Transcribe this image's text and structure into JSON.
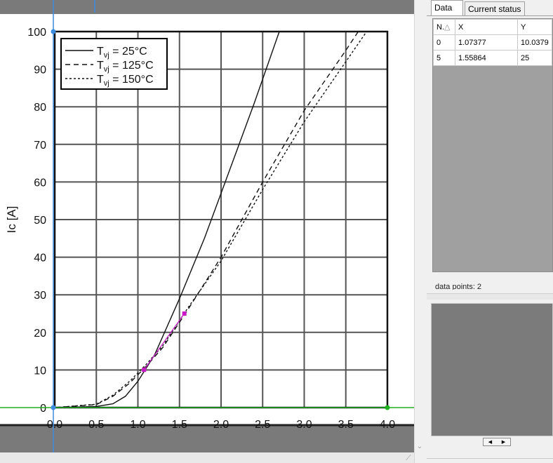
{
  "chart_data": {
    "type": "line",
    "xlabel": "",
    "ylabel": "Ic [A]",
    "xlim": [
      0,
      4
    ],
    "ylim": [
      0,
      100
    ],
    "x_ticks": [
      "0.0",
      "0.5",
      "1.0",
      "1.5",
      "2.0",
      "2.5",
      "3.0",
      "3.5",
      "4.0"
    ],
    "y_ticks": [
      "0",
      "10",
      "20",
      "30",
      "40",
      "50",
      "60",
      "70",
      "80",
      "90",
      "100"
    ],
    "grid": true,
    "legend_position": "top-left",
    "series": [
      {
        "name": "25°C",
        "style": "solid",
        "x": [
          0,
          0.5,
          0.7,
          0.85,
          1.0,
          1.2,
          1.5,
          1.8,
          2.1,
          2.4,
          2.7
        ],
        "y": [
          0,
          0.3,
          1.0,
          3.0,
          7.0,
          14.0,
          29.0,
          45.0,
          63.0,
          81.0,
          100.0
        ]
      },
      {
        "name": "125°C",
        "style": "dashed",
        "x": [
          0,
          0.5,
          0.7,
          0.9,
          1.1,
          1.3,
          1.6,
          2.0,
          2.5,
          3.0,
          3.5,
          3.65
        ],
        "y": [
          0,
          0.8,
          3.0,
          6.5,
          11.0,
          16.0,
          26.0,
          40.0,
          60.0,
          79.0,
          95.0,
          100.0
        ]
      },
      {
        "name": "150°C",
        "style": "dotted",
        "x": [
          0,
          0.5,
          0.7,
          0.9,
          1.1,
          1.3,
          1.6,
          2.0,
          2.5,
          3.0,
          3.5,
          3.75
        ],
        "y": [
          0,
          0.9,
          3.3,
          7.0,
          11.5,
          16.5,
          26.5,
          39.0,
          58.0,
          76.0,
          92.0,
          100.0
        ]
      }
    ],
    "legend_labels": {
      "prefix": "T",
      "subscript": "vj",
      "entries": [
        "= 25°C",
        "= 125°C",
        "= 150°C"
      ]
    },
    "digitized_points": [
      {
        "x": 1.07377,
        "y": 10.0379
      },
      {
        "x": 1.55864,
        "y": 25
      }
    ]
  },
  "colors": {
    "digitized_point": "#c818c8",
    "calib_x_axis": "#20b020",
    "calib_y_axis": "#3c8ce0",
    "canvas_background": "#7a7a7a"
  },
  "panel": {
    "tabs": {
      "data": "Data",
      "status": "Current status"
    },
    "table": {
      "headers": [
        "N",
        "X",
        "Y"
      ],
      "sort_indicator": "△",
      "header_dot": ".",
      "rows": [
        [
          "0",
          "1.07377",
          "10.0379"
        ],
        [
          "5",
          "1.55864",
          "25"
        ]
      ]
    },
    "points_label": "data points: 2"
  },
  "icons": {
    "scroll_down": "chevron-down-icon",
    "resize_grip": "resize-grip-icon",
    "scroll_left": "arrow-left-icon",
    "scroll_right": "arrow-right-icon"
  }
}
